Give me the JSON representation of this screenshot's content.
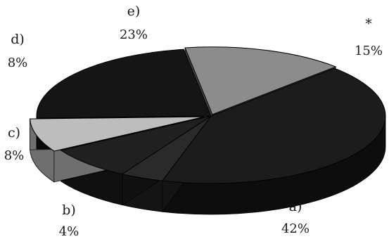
{
  "chart_data": {
    "type": "pie",
    "style": "3d",
    "slices": [
      {
        "label": "a)",
        "percent_text": "42%",
        "value": 42,
        "color": "#1c1c1c",
        "side_color": "#0d0d0d"
      },
      {
        "label": "b)",
        "percent_text": "4%",
        "value": 4,
        "color": "#2a2a2a",
        "side_color": "#141414"
      },
      {
        "label": "c)",
        "percent_text": "8%",
        "value": 8,
        "color": "#202020",
        "side_color": "#101010"
      },
      {
        "label": "d)",
        "percent_text": "8%",
        "value": 8,
        "color": "#bdbdbd",
        "side_color": "#6f6f6f"
      },
      {
        "label": "e)",
        "percent_text": "23%",
        "value": 23,
        "color": "#151515",
        "side_color": "#0a0a0a"
      },
      {
        "label": "*",
        "percent_text": "15%",
        "value": 15,
        "color": "#8c8c8c",
        "side_color": "#4a4a4a"
      }
    ]
  }
}
